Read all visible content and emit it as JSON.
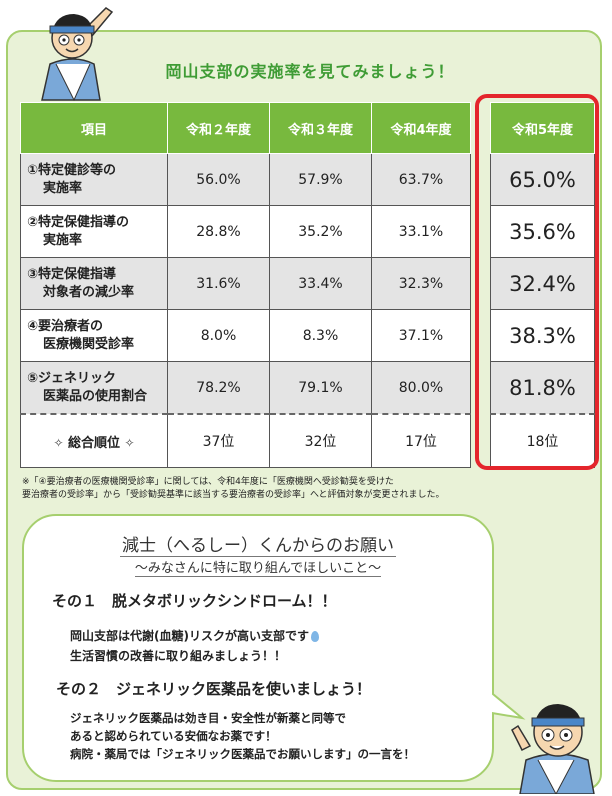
{
  "title": "岡山支部の実施率を見てみましょう！",
  "table": {
    "headers": [
      "項目",
      "令和２年度",
      "令和３年度",
      "令和4年度",
      "令和5年度"
    ],
    "rows": [
      {
        "label1": "①特定健診等の",
        "label2": "実施率",
        "values": [
          "56.0%",
          "57.9%",
          "63.7%",
          "65.0%"
        ]
      },
      {
        "label1": "②特定保健指導の",
        "label2": "実施率",
        "values": [
          "28.8%",
          "35.2%",
          "33.1%",
          "35.6%"
        ]
      },
      {
        "label1": "③特定保健指導",
        "label2": "対象者の減少率",
        "values": [
          "31.6%",
          "33.4%",
          "32.3%",
          "32.4%"
        ]
      },
      {
        "label1": "④要治療者の",
        "label2": "医療機関受診率",
        "values": [
          "8.0%",
          "8.3%",
          "37.1%",
          "38.3%"
        ]
      },
      {
        "label1": "⑤ジェネリック",
        "label2": "医薬品の使用割合",
        "values": [
          "78.2%",
          "79.1%",
          "80.0%",
          "81.8%"
        ]
      }
    ],
    "summary": {
      "label": "総合順位",
      "sparkle": "✧",
      "values": [
        "37位",
        "32位",
        "17位",
        "18位"
      ]
    }
  },
  "note": {
    "line1": "※「④要治療者の医療機関受診率」に関しては、令和4年度に「医療機関へ受診勧奨を受けた",
    "line2": "要治療者の受診率」から「受診勧奨基準に該当する要治療者の受診率」へと評価対象が変更されました。"
  },
  "bubble": {
    "title": "減士（へるしー）くんからのお願い",
    "subtitle": "～みなさんに特に取り組んでほしいこと～",
    "item1": {
      "heading": "その１　脱メタボリックシンドローム！！",
      "lines": [
        "岡山支部は代謝(血糖)リスクが高い支部です",
        "生活習慣の改善に取り組みましょう！！"
      ]
    },
    "item2": {
      "heading": "その２　ジェネリック医薬品を使いましょう！",
      "lines": [
        "ジェネリック医薬品は効き目・安全性が新薬と同等で",
        "あると認められている安価なお薬です！",
        "病院・薬局では「ジェネリック医薬品でお願いします」の一言を！"
      ]
    }
  },
  "colors": {
    "accent_green": "#78b93e",
    "title_green": "#3f9c35",
    "highlight_red": "#e4252c",
    "panel_bg": "#e9f2d7"
  }
}
